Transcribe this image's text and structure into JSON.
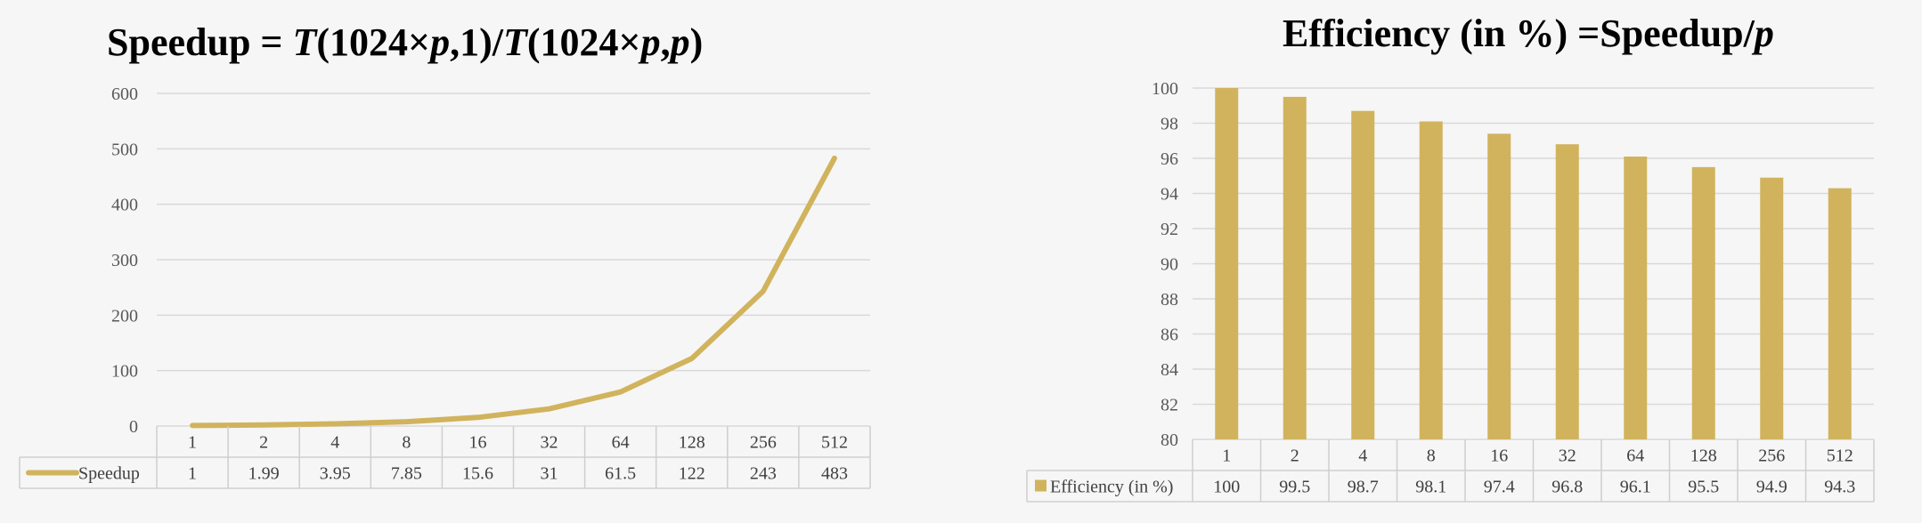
{
  "colors": {
    "series": "#d1b35d",
    "grid": "#d9d9d9",
    "table": "#cfcfcf"
  },
  "chart_data": [
    {
      "type": "line",
      "title_parts": [
        "Speedup = ",
        "T",
        "(1024×",
        "p",
        ",1)/",
        "T",
        "(1024×",
        "p",
        ",",
        "p",
        ")"
      ],
      "categories": [
        "1",
        "2",
        "4",
        "8",
        "16",
        "32",
        "64",
        "128",
        "256",
        "512"
      ],
      "series": [
        {
          "name": "Speedup",
          "values": [
            1,
            1.99,
            3.95,
            7.85,
            15.6,
            31,
            61.5,
            122,
            243,
            483
          ]
        }
      ],
      "ylim": [
        0,
        600
      ],
      "yticks": [
        0,
        100,
        200,
        300,
        400,
        500,
        600
      ],
      "grid": true,
      "legend": "data-table",
      "data_table": true
    },
    {
      "type": "bar",
      "title_parts": [
        "Efficiency (in %) =Speedup/",
        "p"
      ],
      "categories": [
        "1",
        "2",
        "4",
        "8",
        "16",
        "32",
        "64",
        "128",
        "256",
        "512"
      ],
      "series": [
        {
          "name": "Efficiency (in %)",
          "values": [
            100,
            99.5,
            98.7,
            98.1,
            97.4,
            96.8,
            96.1,
            95.5,
            94.9,
            94.3
          ]
        }
      ],
      "ylim": [
        80,
        100
      ],
      "yticks": [
        80,
        82,
        84,
        86,
        88,
        90,
        92,
        94,
        96,
        98,
        100
      ],
      "grid": true,
      "legend": "data-table",
      "data_table": true
    }
  ]
}
